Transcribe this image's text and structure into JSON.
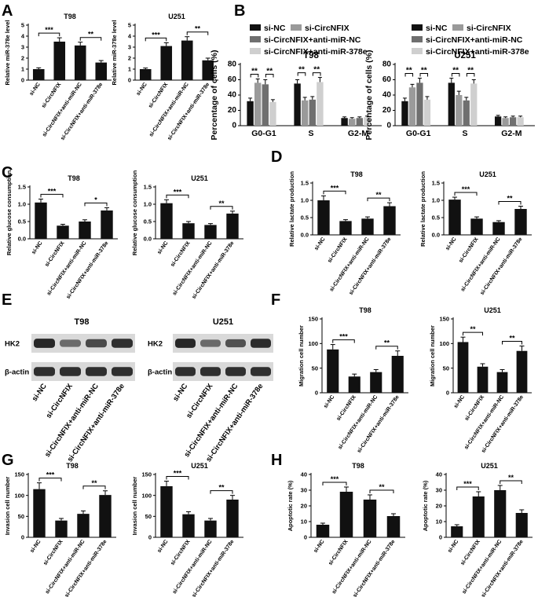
{
  "colors": {
    "bar": "#111111",
    "series_black": "#111111",
    "series_darkgray": "#6f6f6f",
    "series_gray": "#9a9a9a",
    "series_light": "#cfcfcf",
    "blot_band": "#3a3a3a"
  },
  "panel_labels": {
    "A": "A",
    "B": "B",
    "C": "C",
    "D": "D",
    "E": "E",
    "F": "F",
    "G": "G",
    "H": "H"
  },
  "categories": [
    "si-NC",
    "si-CircNFIX",
    "si-CircNFIX+anti-miR-NC",
    "si-CircNFIX+anti-miR-378e"
  ],
  "blot": {
    "panels": [
      {
        "title": "T98",
        "rows": [
          {
            "label": "HK2",
            "intensity": [
              0.95,
              0.55,
              0.75,
              0.9
            ]
          },
          {
            "label": "β-actin",
            "intensity": [
              0.9,
              0.9,
              0.9,
              0.9
            ]
          }
        ]
      },
      {
        "title": "U251",
        "rows": [
          {
            "label": "HK2",
            "intensity": [
              0.95,
              0.55,
              0.7,
              0.92
            ]
          },
          {
            "label": "β-actin",
            "intensity": [
              0.9,
              0.9,
              0.9,
              0.9
            ]
          }
        ]
      }
    ]
  },
  "chart_data": [
    {
      "id": "A1",
      "panel": "A",
      "type": "bar",
      "title": "T98",
      "ylabel": "Relative miR-378e level",
      "ylim": [
        0,
        5
      ],
      "yticks": [
        "0",
        "1",
        "2",
        "3",
        "4",
        "5"
      ],
      "categories": [
        "si-NC",
        "si-CircNFIX",
        "si-CircNFIX+anti-miR-NC",
        "si-CircNFIX+anti-miR-378e"
      ],
      "values": [
        1.0,
        3.5,
        3.15,
        1.6
      ],
      "errors": [
        0.12,
        0.35,
        0.3,
        0.18
      ],
      "significance": [
        {
          "from": 0,
          "to": 1,
          "label": "***"
        },
        {
          "from": 2,
          "to": 3,
          "label": "**"
        }
      ]
    },
    {
      "id": "A2",
      "panel": "A",
      "type": "bar",
      "title": "U251",
      "ylabel": "Relative miR-378e level",
      "ylim": [
        0,
        5
      ],
      "yticks": [
        "0",
        "1",
        "2",
        "3",
        "4",
        "5"
      ],
      "categories": [
        "si-NC",
        "si-CircNFIX",
        "si-CircNFIX+anti-miR-NC",
        "si-CircNFIX+anti-miR-378e"
      ],
      "values": [
        1.0,
        3.1,
        3.6,
        1.8
      ],
      "errors": [
        0.1,
        0.3,
        0.35,
        0.2
      ],
      "significance": [
        {
          "from": 0,
          "to": 1,
          "label": "***"
        },
        {
          "from": 2,
          "to": 3,
          "label": "**"
        }
      ]
    },
    {
      "id": "B1",
      "panel": "B",
      "type": "bar",
      "title": "T98",
      "ylabel": "Percentage of cells (%)",
      "ylim": [
        0,
        80
      ],
      "yticks": [
        "0",
        "20",
        "40",
        "60",
        "80"
      ],
      "categories": [
        "G0-G1",
        "S",
        "G2-M"
      ],
      "series": [
        {
          "name": "si-NC",
          "values": [
            32,
            55,
            10
          ],
          "errors": [
            4,
            5,
            1.5
          ]
        },
        {
          "name": "si-CircNFIX",
          "values": [
            56,
            33,
            9
          ],
          "errors": [
            5,
            4,
            1.5
          ]
        },
        {
          "name": "si-CircNFIX+anti-miR-NC",
          "values": [
            54,
            34,
            10
          ],
          "errors": [
            6,
            4,
            1.5
          ]
        },
        {
          "name": "si-CircNFIX+anti-miR-378e",
          "values": [
            31,
            57,
            11
          ],
          "errors": [
            3,
            6,
            1.5
          ]
        }
      ],
      "significance": [
        {
          "group": 0,
          "from": 0,
          "to": 1,
          "label": "**"
        },
        {
          "group": 0,
          "from": 2,
          "to": 3,
          "label": "**"
        },
        {
          "group": 1,
          "from": 0,
          "to": 1,
          "label": "**"
        },
        {
          "group": 1,
          "from": 2,
          "to": 3,
          "label": "**"
        }
      ]
    },
    {
      "id": "B2",
      "panel": "B",
      "type": "bar",
      "title": "U251",
      "ylabel": "Percentage of cells (%)",
      "ylim": [
        0,
        80
      ],
      "yticks": [
        "0",
        "20",
        "40",
        "60",
        "80"
      ],
      "categories": [
        "G0-G1",
        "S",
        "G2-M"
      ],
      "series": [
        {
          "name": "si-NC",
          "values": [
            32,
            56,
            12
          ],
          "errors": [
            4,
            6,
            1.5
          ]
        },
        {
          "name": "si-CircNFIX",
          "values": [
            50,
            40,
            10
          ],
          "errors": [
            4,
            5,
            1.5
          ]
        },
        {
          "name": "si-CircNFIX+anti-miR-NC",
          "values": [
            56,
            33,
            11
          ],
          "errors": [
            6,
            4,
            1.5
          ]
        },
        {
          "name": "si-CircNFIX+anti-miR-378e",
          "values": [
            34,
            55,
            11
          ],
          "errors": [
            4,
            5,
            1.5
          ]
        }
      ],
      "significance": [
        {
          "group": 0,
          "from": 0,
          "to": 1,
          "label": "**"
        },
        {
          "group": 0,
          "from": 2,
          "to": 3,
          "label": "**"
        },
        {
          "group": 1,
          "from": 0,
          "to": 1,
          "label": "**"
        },
        {
          "group": 1,
          "from": 2,
          "to": 3,
          "label": "**"
        }
      ]
    },
    {
      "id": "C1",
      "panel": "C",
      "type": "bar",
      "title": "T98",
      "ylabel": "Relative glucose consumption",
      "ylim": [
        0,
        1.5
      ],
      "yticks": [
        "0.0",
        "0.5",
        "1.0",
        "1.5"
      ],
      "categories": [
        "si-NC",
        "si-CircNFIX",
        "si-CircNFIX+anti-miR-NC",
        "si-CircNFIX+anti-miR-378e"
      ],
      "values": [
        1.05,
        0.38,
        0.5,
        0.82
      ],
      "errors": [
        0.1,
        0.04,
        0.05,
        0.08
      ],
      "significance": [
        {
          "from": 0,
          "to": 1,
          "label": "***"
        },
        {
          "from": 2,
          "to": 3,
          "label": "*"
        }
      ]
    },
    {
      "id": "C2",
      "panel": "C",
      "type": "bar",
      "title": "U251",
      "ylabel": "Relative glucose consumption",
      "ylim": [
        0,
        1.5
      ],
      "yticks": [
        "0.0",
        "0.5",
        "1.0",
        "1.5"
      ],
      "categories": [
        "si-NC",
        "si-CircNFIX",
        "si-CircNFIX+anti-miR-NC",
        "si-CircNFIX+anti-miR-378e"
      ],
      "values": [
        1.03,
        0.45,
        0.4,
        0.73
      ],
      "errors": [
        0.1,
        0.05,
        0.04,
        0.07
      ],
      "significance": [
        {
          "from": 0,
          "to": 1,
          "label": "***"
        },
        {
          "from": 2,
          "to": 3,
          "label": "**"
        }
      ]
    },
    {
      "id": "D1",
      "panel": "D",
      "type": "bar",
      "title": "T98",
      "ylabel": "Relative lactate production",
      "ylim": [
        0,
        1.5
      ],
      "yticks": [
        "0.0",
        "0.5",
        "1.0",
        "1.5"
      ],
      "categories": [
        "si-NC",
        "si-CircNFIX",
        "si-CircNFIX+anti-miR-NC",
        "si-CircNFIX+anti-miR-378e"
      ],
      "values": [
        1.0,
        0.4,
        0.47,
        0.83
      ],
      "errors": [
        0.13,
        0.04,
        0.05,
        0.1
      ],
      "significance": [
        {
          "from": 0,
          "to": 1,
          "label": "***"
        },
        {
          "from": 2,
          "to": 3,
          "label": "**"
        }
      ]
    },
    {
      "id": "D2",
      "panel": "D",
      "type": "bar",
      "title": "U251",
      "ylabel": "Relative lactate production",
      "ylim": [
        0,
        1.5
      ],
      "yticks": [
        "0.0",
        "0.5",
        "1.0",
        "1.5"
      ],
      "categories": [
        "si-NC",
        "si-CircNFIX",
        "si-CircNFIX+anti-miR-NC",
        "si-CircNFIX+anti-miR-378e"
      ],
      "values": [
        1.02,
        0.47,
        0.37,
        0.75
      ],
      "errors": [
        0.07,
        0.05,
        0.04,
        0.08
      ],
      "significance": [
        {
          "from": 0,
          "to": 1,
          "label": "***"
        },
        {
          "from": 2,
          "to": 3,
          "label": "**"
        }
      ]
    },
    {
      "id": "F1",
      "panel": "F",
      "type": "bar",
      "title": "T98",
      "ylabel": "Migration cell number",
      "ylim": [
        0,
        150
      ],
      "yticks": [
        "0",
        "50",
        "100",
        "150"
      ],
      "categories": [
        "si-NC",
        "si-CircNFIX",
        "si-CircNFIX+anti-miR-NC",
        "si-CircNFIX+anti-miR-378e"
      ],
      "values": [
        88,
        33,
        42,
        75
      ],
      "errors": [
        10,
        5,
        5,
        10
      ],
      "significance": [
        {
          "from": 0,
          "to": 1,
          "label": "***"
        },
        {
          "from": 2,
          "to": 3,
          "label": "**"
        }
      ]
    },
    {
      "id": "F2",
      "panel": "F",
      "type": "bar",
      "title": "U251",
      "ylabel": "Migration cell number",
      "ylim": [
        0,
        150
      ],
      "yticks": [
        "0",
        "50",
        "100",
        "150"
      ],
      "categories": [
        "si-NC",
        "si-CircNFIX",
        "si-CircNFIX+anti-miR-NC",
        "si-CircNFIX+anti-miR-378e"
      ],
      "values": [
        103,
        53,
        42,
        85
      ],
      "errors": [
        10,
        6,
        5,
        10
      ],
      "significance": [
        {
          "from": 0,
          "to": 1,
          "label": "**"
        },
        {
          "from": 2,
          "to": 3,
          "label": "**"
        }
      ]
    },
    {
      "id": "G1",
      "panel": "G",
      "type": "bar",
      "title": "T98",
      "ylabel": "Invasion cell number",
      "ylim": [
        0,
        150
      ],
      "yticks": [
        "0",
        "50",
        "100",
        "150"
      ],
      "categories": [
        "si-NC",
        "si-CircNFIX",
        "si-CircNFIX+anti-miR-NC",
        "si-CircNFIX+anti-miR-378e"
      ],
      "values": [
        115,
        40,
        56,
        101
      ],
      "errors": [
        15,
        5,
        7,
        10
      ],
      "significance": [
        {
          "from": 0,
          "to": 1,
          "label": "***"
        },
        {
          "from": 2,
          "to": 3,
          "label": "**"
        }
      ]
    },
    {
      "id": "G2",
      "panel": "G",
      "type": "bar",
      "title": "U251",
      "ylabel": "Invasion cell number",
      "ylim": [
        0,
        150
      ],
      "yticks": [
        "0",
        "50",
        "100",
        "150"
      ],
      "categories": [
        "si-NC",
        "si-CircNFIX",
        "si-CircNFIX+anti-miR-NC",
        "si-CircNFIX+anti-miR-378e"
      ],
      "values": [
        122,
        55,
        40,
        90
      ],
      "errors": [
        12,
        6,
        5,
        10
      ],
      "significance": [
        {
          "from": 0,
          "to": 1,
          "label": "***"
        },
        {
          "from": 2,
          "to": 3,
          "label": "**"
        }
      ]
    },
    {
      "id": "H1",
      "panel": "H",
      "type": "bar",
      "title": "T98",
      "ylabel": "Apoptotic rate (%)",
      "ylim": [
        0,
        40
      ],
      "yticks": [
        "0",
        "10",
        "20",
        "30",
        "40"
      ],
      "categories": [
        "si-NC",
        "si-CircNFIX",
        "si-CircNFIX+anti-miR-NC",
        "si-CircNFIX+anti-miR-378e"
      ],
      "values": [
        8,
        29,
        24,
        13.5
      ],
      "errors": [
        1,
        3,
        3,
        1.5
      ],
      "significance": [
        {
          "from": 0,
          "to": 1,
          "label": "***"
        },
        {
          "from": 2,
          "to": 3,
          "label": "**"
        }
      ]
    },
    {
      "id": "H2",
      "panel": "H",
      "type": "bar",
      "title": "U251",
      "ylabel": "Apoptotic rate (%)",
      "ylim": [
        0,
        40
      ],
      "yticks": [
        "0",
        "10",
        "20",
        "30",
        "40"
      ],
      "categories": [
        "si-NC",
        "si-CircNFIX",
        "si-CircNFIX+anti-miR-NC",
        "si-CircNFIX+anti-miR-378e"
      ],
      "values": [
        7,
        26,
        30,
        15.5
      ],
      "errors": [
        1,
        3,
        3,
        2
      ],
      "significance": [
        {
          "from": 0,
          "to": 1,
          "label": "***"
        },
        {
          "from": 2,
          "to": 3,
          "label": "**"
        }
      ]
    }
  ]
}
